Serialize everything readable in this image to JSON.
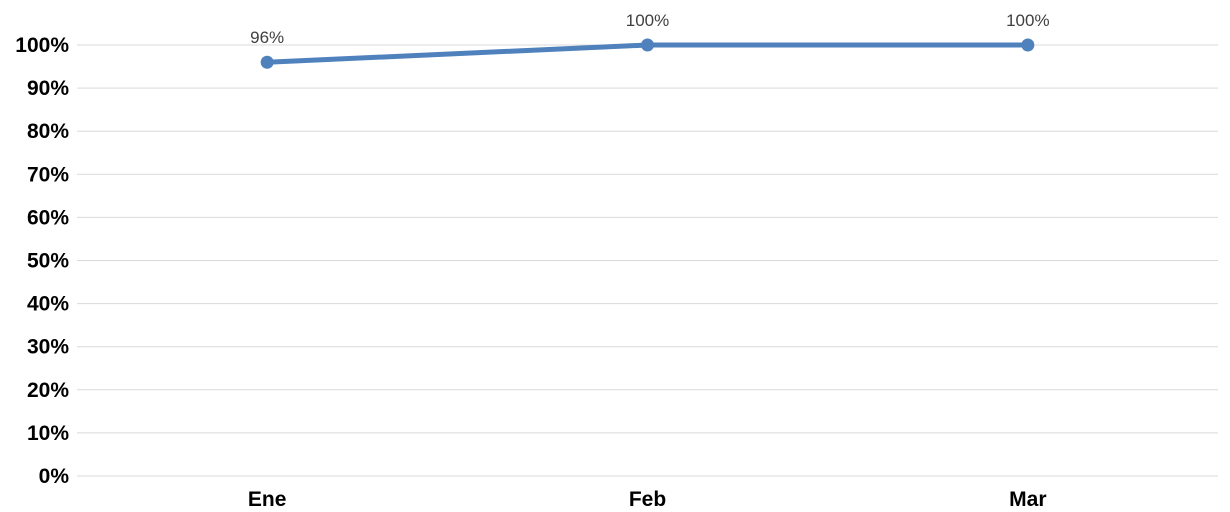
{
  "chart_data": {
    "type": "line",
    "title": "",
    "xlabel": "",
    "ylabel": "",
    "categories": [
      "Ene",
      "Feb",
      "Mar"
    ],
    "series": [
      {
        "values": [
          96,
          100,
          100
        ],
        "data_labels": [
          "96%",
          "100%",
          "100%"
        ],
        "color": "#4f81bd"
      }
    ],
    "ylim": [
      0,
      100
    ],
    "y_ticks": [
      0,
      10,
      20,
      30,
      40,
      50,
      60,
      70,
      80,
      90,
      100
    ],
    "y_tick_labels": [
      "0%",
      "10%",
      "20%",
      "30%",
      "40%",
      "50%",
      "60%",
      "70%",
      "80%",
      "90%",
      "100%"
    ],
    "grid": true,
    "legend": "none"
  }
}
